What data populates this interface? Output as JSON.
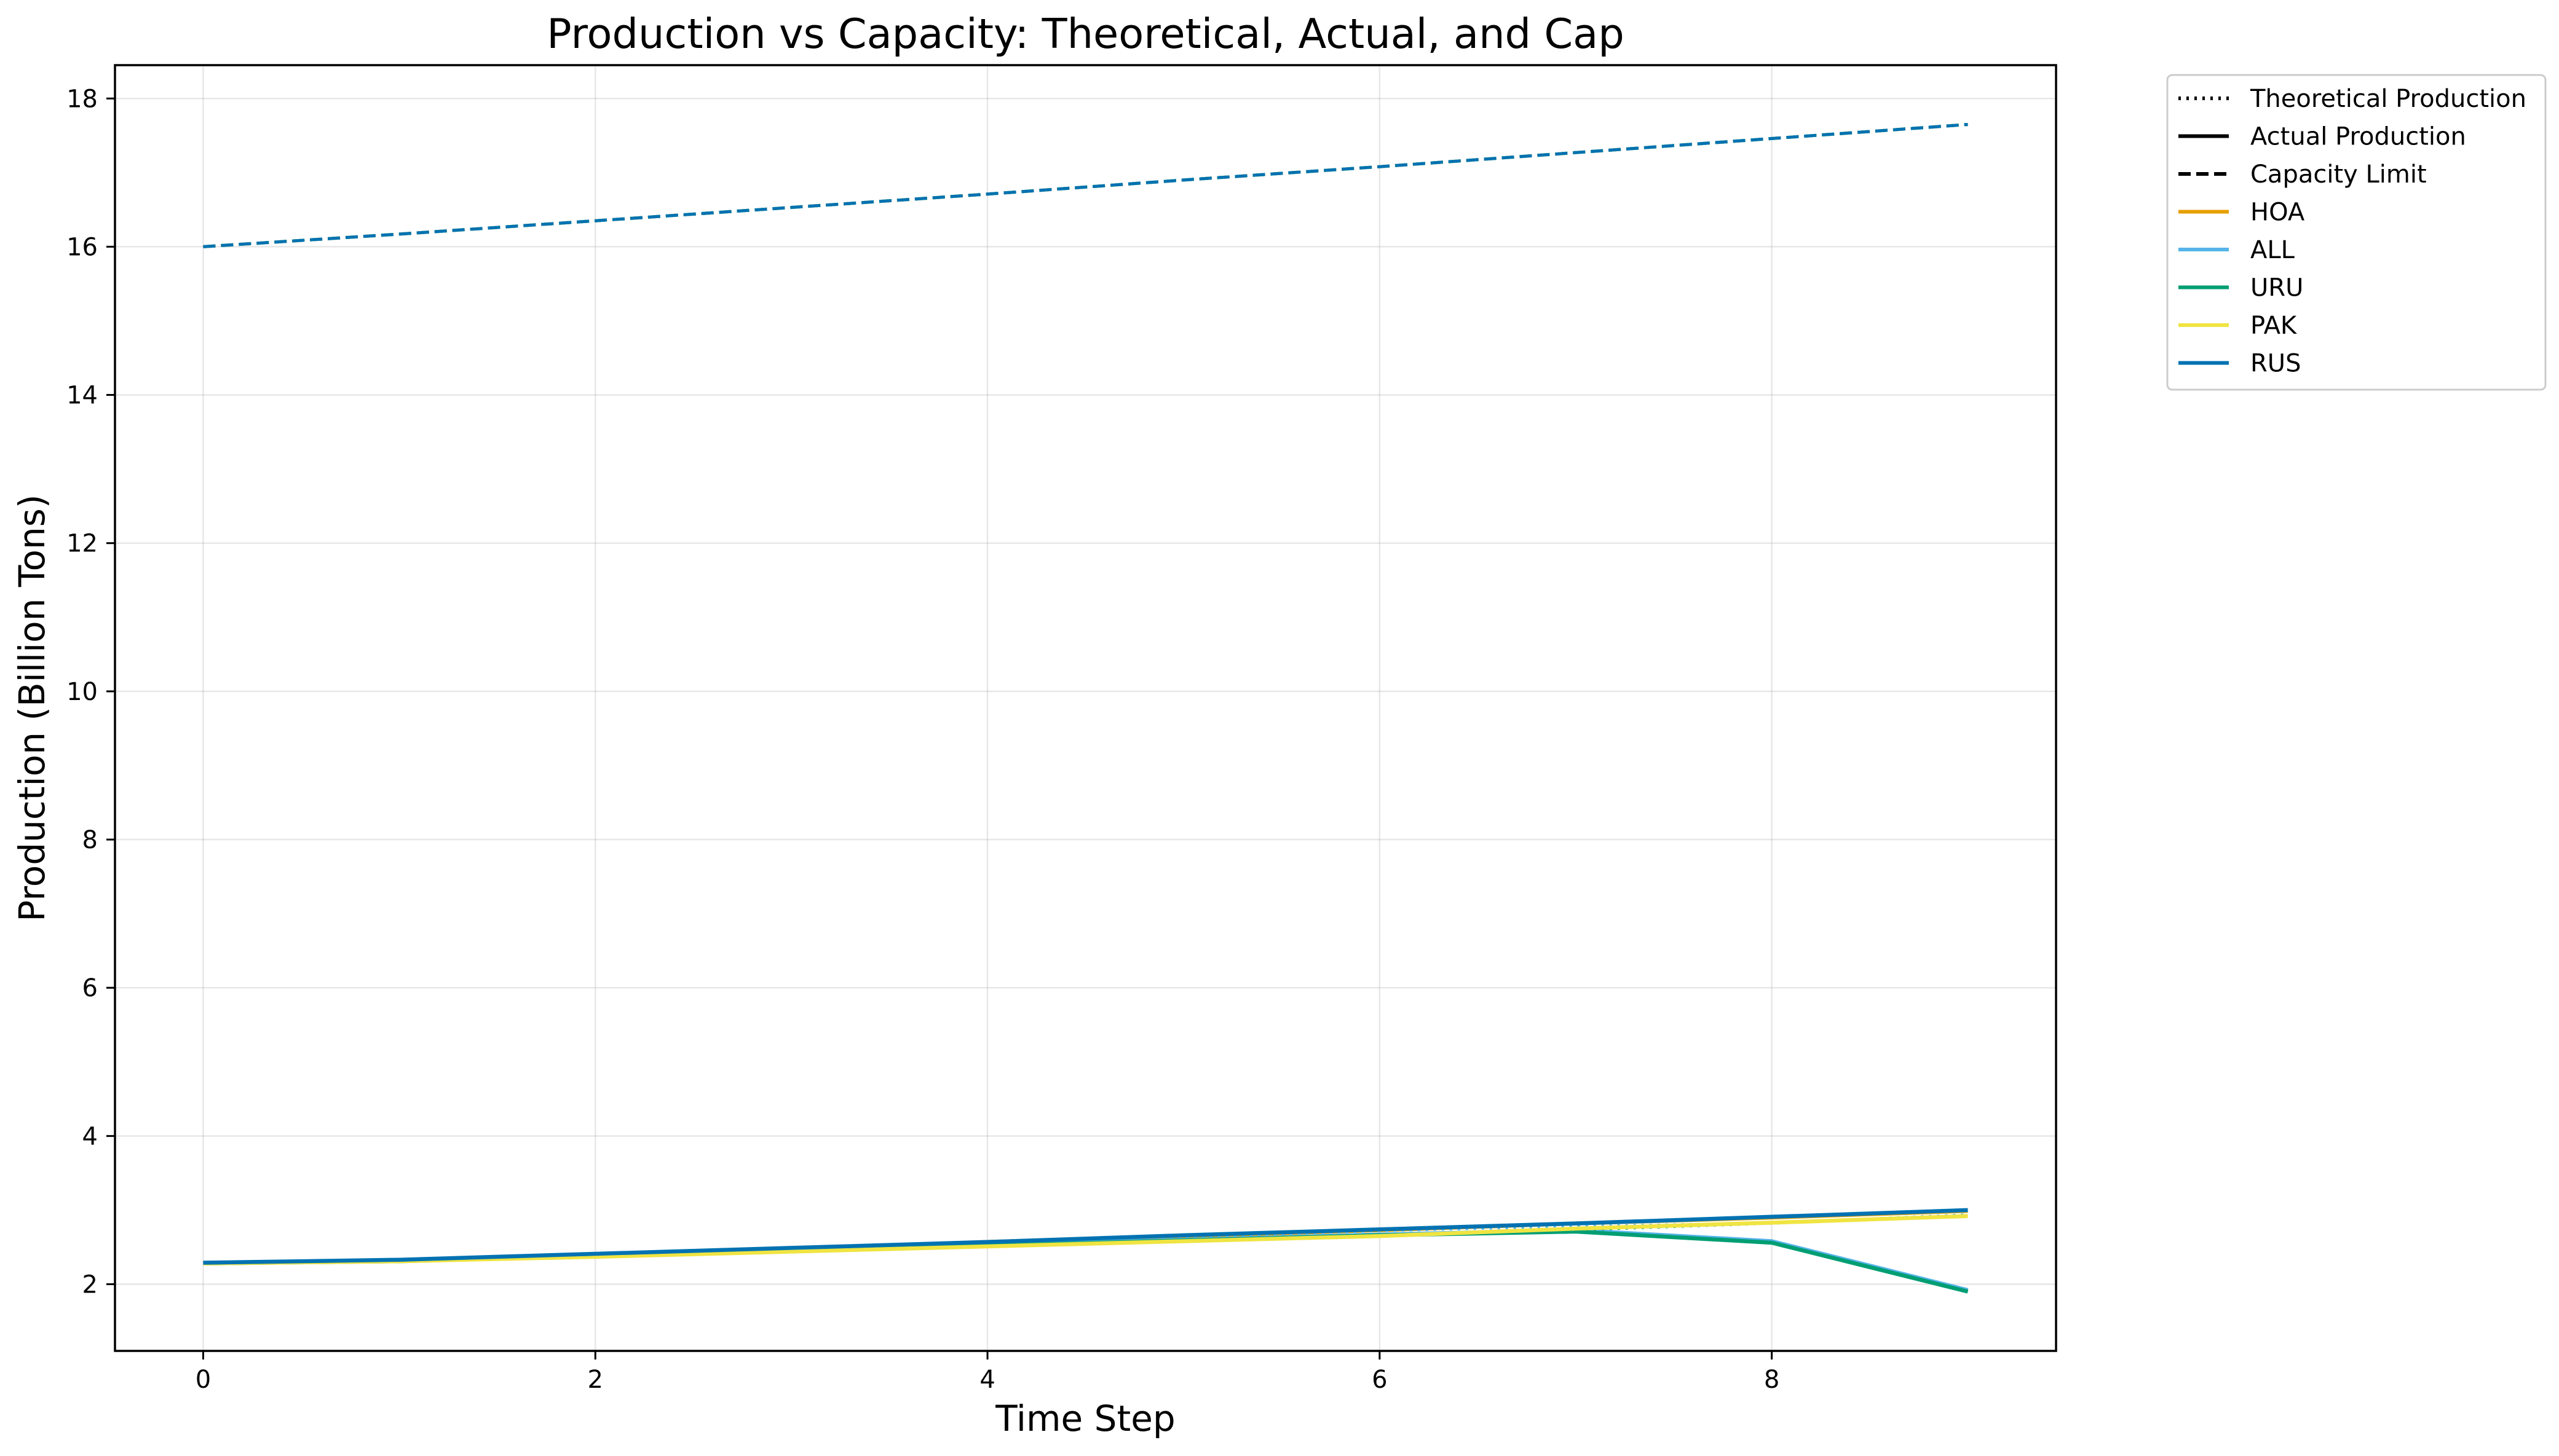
{
  "chart_data": {
    "type": "line",
    "title": "Production vs Capacity: Theoretical, Actual, and Cap",
    "xlabel": "Time Step",
    "ylabel": "Production (Billion Tons)",
    "xlim": [
      -0.45,
      9.45
    ],
    "ylim": [
      1.1,
      18.45
    ],
    "x_ticks": [
      0,
      2,
      4,
      6,
      8
    ],
    "y_ticks": [
      2,
      4,
      6,
      8,
      10,
      12,
      14,
      16,
      18
    ],
    "grid": true,
    "legend_position": "outside-top-right",
    "x": [
      0,
      1,
      2,
      3,
      4,
      5,
      6,
      7,
      8,
      9
    ],
    "style_legend": [
      {
        "label": "Theoretical Production",
        "dash": "dotted"
      },
      {
        "label": "Actual Production",
        "dash": "solid"
      },
      {
        "label": "Capacity Limit",
        "dash": "dashed"
      }
    ],
    "series": [
      {
        "name": "HOA",
        "color": "#E69F00",
        "theoretical": [
          2.28,
          2.32,
          2.4,
          2.48,
          2.57,
          2.65,
          2.73,
          2.82,
          2.9,
          2.99
        ],
        "actual": [
          2.28,
          2.32,
          2.4,
          2.48,
          2.57,
          2.65,
          2.73,
          2.82,
          2.9,
          2.99
        ],
        "capacity": [
          16.0,
          16.17,
          16.35,
          16.53,
          16.71,
          16.9,
          17.08,
          17.27,
          17.46,
          17.65
        ]
      },
      {
        "name": "ALL",
        "color": "#56B4E9",
        "theoretical": [
          2.28,
          2.32,
          2.4,
          2.48,
          2.56,
          2.64,
          2.72,
          2.78,
          2.83,
          2.94
        ],
        "actual": [
          2.28,
          2.32,
          2.39,
          2.46,
          2.53,
          2.6,
          2.67,
          2.73,
          2.58,
          1.92
        ],
        "capacity": [
          16.0,
          16.17,
          16.35,
          16.53,
          16.71,
          16.9,
          17.08,
          17.27,
          17.46,
          17.65
        ]
      },
      {
        "name": "URU",
        "color": "#009E73",
        "theoretical": [
          2.28,
          2.32,
          2.39,
          2.46,
          2.53,
          2.6,
          2.67,
          2.73,
          2.82,
          2.92
        ],
        "actual": [
          2.28,
          2.31,
          2.38,
          2.45,
          2.52,
          2.59,
          2.66,
          2.71,
          2.56,
          1.9
        ],
        "capacity": [
          16.0,
          16.17,
          16.35,
          16.53,
          16.71,
          16.9,
          17.08,
          17.27,
          17.46,
          17.65
        ]
      },
      {
        "name": "PAK",
        "color": "#F0E442",
        "theoretical": [
          2.28,
          2.31,
          2.37,
          2.44,
          2.51,
          2.58,
          2.65,
          2.75,
          2.83,
          2.92
        ],
        "actual": [
          2.28,
          2.31,
          2.37,
          2.44,
          2.51,
          2.58,
          2.65,
          2.75,
          2.83,
          2.92
        ],
        "capacity": [
          16.0,
          16.17,
          16.35,
          16.53,
          16.71,
          16.9,
          17.08,
          17.27,
          17.46,
          17.65
        ]
      },
      {
        "name": "RUS",
        "color": "#0072B2",
        "theoretical": [
          2.29,
          2.33,
          2.41,
          2.49,
          2.57,
          2.66,
          2.74,
          2.82,
          2.91,
          3.0
        ],
        "actual": [
          2.29,
          2.33,
          2.41,
          2.49,
          2.57,
          2.66,
          2.74,
          2.82,
          2.91,
          3.0
        ],
        "capacity": [
          16.0,
          16.17,
          16.35,
          16.53,
          16.71,
          16.9,
          17.08,
          17.27,
          17.46,
          17.65
        ]
      }
    ]
  }
}
